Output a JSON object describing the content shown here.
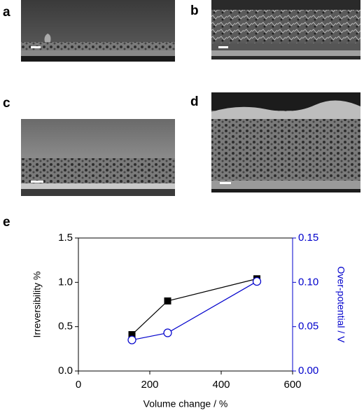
{
  "panels": [
    {
      "label": "a"
    },
    {
      "label": "b"
    },
    {
      "label": "c"
    },
    {
      "label": "d"
    },
    {
      "label": "e"
    }
  ],
  "chart_data": {
    "type": "line",
    "x_label": "Volume change / %",
    "y_label": "Irreversibility %",
    "y2_label": "Over-potential / V",
    "x": [
      150,
      250,
      500
    ],
    "series": [
      {
        "color": "#000000",
        "marker": "square",
        "values": [
          0.41,
          0.79,
          1.04
        ]
      },
      {
        "color": "#0000cc",
        "marker": "open-circle",
        "axis": "y2",
        "values": [
          0.035,
          0.043,
          0.101
        ]
      }
    ],
    "xlim": [
      0,
      600
    ],
    "xticks": [
      0,
      200,
      400,
      600
    ],
    "ylim": [
      0,
      1.5
    ],
    "yticks": [
      {
        "value": 0,
        "label": "0.0"
      },
      0.5,
      {
        "value": 1,
        "label": "1.0"
      },
      1.5
    ],
    "y2lim": [
      0,
      0.15
    ],
    "y2ticks": [
      {
        "value": 0,
        "label": "0.00"
      },
      0.05,
      {
        "value": 0.1,
        "label": "0.10"
      },
      0.15
    ],
    "y2_color": "#0000cc"
  }
}
